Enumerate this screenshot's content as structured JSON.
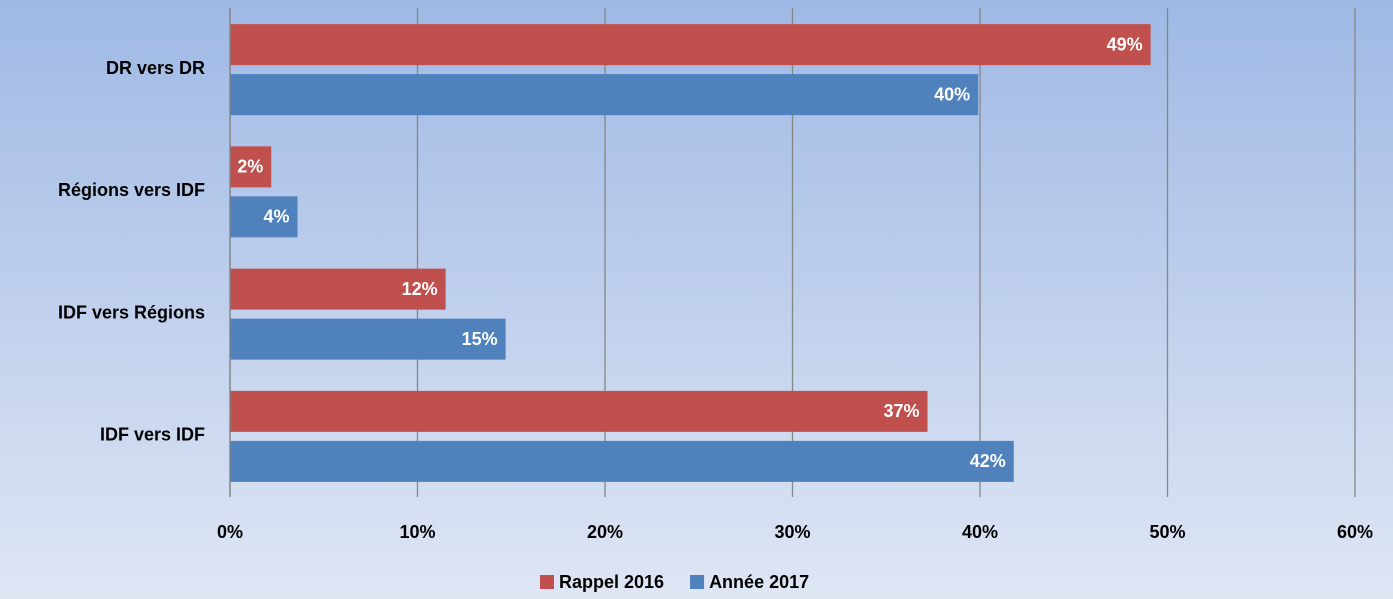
{
  "chart_data": {
    "type": "hbar",
    "categories": [
      "DR vers DR",
      "Régions vers IDF",
      "IDF vers Régions",
      "IDF vers IDF"
    ],
    "series": [
      {
        "name": "Rappel 2016",
        "color": "#c0504d",
        "values": [
          49.1,
          2.2,
          11.5,
          37.2
        ],
        "value_labels": [
          "49%",
          "2%",
          "12%",
          "37%"
        ]
      },
      {
        "name": "Année 2017",
        "color": "#4f81bd",
        "values": [
          39.9,
          3.6,
          14.7,
          41.8
        ],
        "value_labels": [
          "40%",
          "4%",
          "15%",
          "42%"
        ]
      }
    ],
    "xlim": [
      0,
      60
    ],
    "xticks": [
      {
        "value": 0,
        "label": "0%"
      },
      {
        "value": 10,
        "label": "10%"
      },
      {
        "value": 20,
        "label": "20%"
      },
      {
        "value": 30,
        "label": "30%"
      },
      {
        "value": 40,
        "label": "40%"
      },
      {
        "value": 50,
        "label": "50%"
      },
      {
        "value": 60,
        "label": "60%"
      }
    ],
    "grid": true,
    "legend": "bottom"
  }
}
